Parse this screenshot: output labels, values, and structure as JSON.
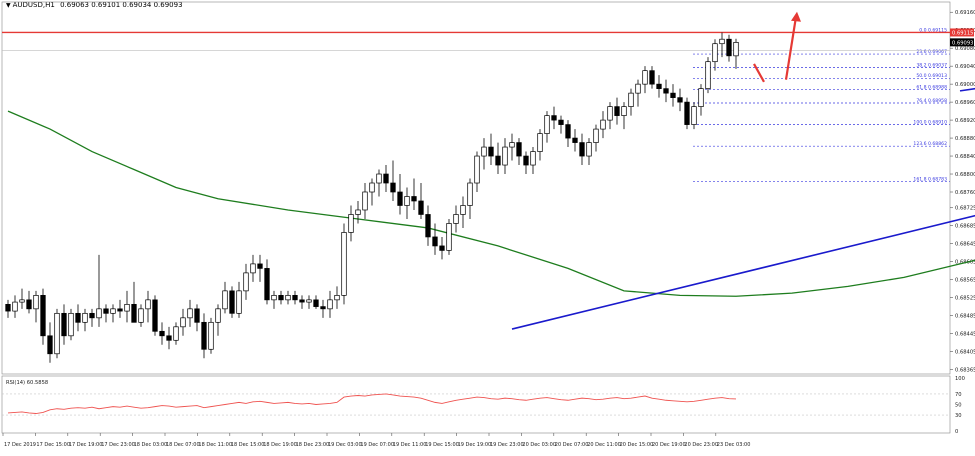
{
  "header": {
    "symbol_label": "AUDUSD,H1",
    "ohlc_label": "0.69063 0.69101 0.69034 0.69093"
  },
  "colors": {
    "up_candle": "#ffffff",
    "down_candle": "#000000",
    "candle_outline": "#000000",
    "ma_line": "#1e7d1e",
    "trendline": "#1a1acc",
    "fib_line": "#3a3ae0",
    "resistance_line": "#e53935",
    "arrow": "#e53935",
    "rsi_line": "#ef5350",
    "grid": "#c8c8c8",
    "price_tag_bg": "#e53935"
  },
  "chart_data": [
    {
      "type": "candlestick",
      "symbol": "AUDUSD",
      "timeframe": "H1",
      "ylim": [
        0.68355,
        0.69165
      ],
      "price_ticks": [
        "0.69160",
        "0.69120",
        "0.69080",
        "0.69040",
        "0.69000",
        "0.68960",
        "0.68920",
        "0.68880",
        "0.68840",
        "0.68800",
        "0.68760",
        "0.68725",
        "0.68685",
        "0.68645",
        "0.68605",
        "0.68565",
        "0.68525",
        "0.68485",
        "0.68445",
        "0.68405",
        "0.68365"
      ],
      "time_ticks": [
        "17 Dec 2019",
        "17 Dec 15:00",
        "17 Dec 19:00",
        "17 Dec 23:00",
        "18 Dec 03:00",
        "18 Dec 07:00",
        "18 Dec 11:00",
        "18 Dec 15:00",
        "18 Dec 19:00",
        "18 Dec 23:00",
        "19 Dec 03:00",
        "19 Dec 07:00",
        "19 Dec 11:00",
        "19 Dec 15:00",
        "19 Dec 19:00",
        "19 Dec 23:00",
        "20 Dec 03:00",
        "20 Dec 07:00",
        "20 Dec 11:00",
        "20 Dec 15:00",
        "20 Dec 19:00",
        "20 Dec 23:00",
        "23 Dec 03:00"
      ],
      "current_price": "0.69093",
      "resistance_price": "0.69115",
      "resistance_tag": "0.69115",
      "fibonacci": [
        {
          "label": "0.0",
          "price": 0.69115,
          "value_text": "0.69115"
        },
        {
          "label": "23.6",
          "price": 0.69067,
          "value_text": "0.69067"
        },
        {
          "label": "38.2",
          "price": 0.69037,
          "value_text": "0.69037"
        },
        {
          "label": "50.0",
          "price": 0.69013,
          "value_text": "0.69013"
        },
        {
          "label": "61.8",
          "price": 0.68988,
          "value_text": "0.68988"
        },
        {
          "label": "76.4",
          "price": 0.68958,
          "value_text": "0.68958"
        },
        {
          "label": "100.0",
          "price": 0.6891,
          "value_text": "0.68910"
        },
        {
          "label": "123.6",
          "price": 0.68862,
          "value_text": "0.68862"
        },
        {
          "label": "161.8",
          "price": 0.68783,
          "value_text": "0.68783"
        }
      ],
      "candles": [
        [
          0.6851,
          0.6852,
          0.6848,
          0.68495
        ],
        [
          0.68495,
          0.6853,
          0.6848,
          0.68515
        ],
        [
          0.68515,
          0.68545,
          0.685,
          0.6852
        ],
        [
          0.6852,
          0.6854,
          0.6849,
          0.685
        ],
        [
          0.685,
          0.6854,
          0.6847,
          0.6853
        ],
        [
          0.6853,
          0.68545,
          0.6842,
          0.6844
        ],
        [
          0.6844,
          0.6847,
          0.6838,
          0.684
        ],
        [
          0.684,
          0.685,
          0.6839,
          0.6849
        ],
        [
          0.6849,
          0.6851,
          0.6842,
          0.6844
        ],
        [
          0.6844,
          0.685,
          0.6843,
          0.6849
        ],
        [
          0.6849,
          0.6851,
          0.6845,
          0.6847
        ],
        [
          0.6847,
          0.685,
          0.6845,
          0.6849
        ],
        [
          0.6849,
          0.685,
          0.6846,
          0.6848
        ],
        [
          0.6848,
          0.6862,
          0.6846,
          0.685
        ],
        [
          0.685,
          0.6851,
          0.6847,
          0.6849
        ],
        [
          0.6849,
          0.6851,
          0.6847,
          0.685
        ],
        [
          0.685,
          0.6852,
          0.6848,
          0.68495
        ],
        [
          0.68495,
          0.6854,
          0.6847,
          0.6851
        ],
        [
          0.6851,
          0.6856,
          0.6847,
          0.6847
        ],
        [
          0.6847,
          0.6851,
          0.6846,
          0.685
        ],
        [
          0.685,
          0.6854,
          0.6847,
          0.6852
        ],
        [
          0.6852,
          0.6853,
          0.6844,
          0.6845
        ],
        [
          0.6845,
          0.6847,
          0.6842,
          0.6844
        ],
        [
          0.6844,
          0.6846,
          0.6841,
          0.6843
        ],
        [
          0.6843,
          0.6847,
          0.6842,
          0.6846
        ],
        [
          0.6846,
          0.685,
          0.6844,
          0.6848
        ],
        [
          0.6848,
          0.6852,
          0.6846,
          0.685
        ],
        [
          0.685,
          0.6851,
          0.6845,
          0.6847
        ],
        [
          0.6847,
          0.6849,
          0.6839,
          0.6841
        ],
        [
          0.6841,
          0.6848,
          0.684,
          0.6847
        ],
        [
          0.6847,
          0.6851,
          0.6844,
          0.685
        ],
        [
          0.685,
          0.6856,
          0.6849,
          0.6854
        ],
        [
          0.6854,
          0.6855,
          0.6848,
          0.6849
        ],
        [
          0.6849,
          0.6856,
          0.6848,
          0.6854
        ],
        [
          0.6854,
          0.686,
          0.6852,
          0.6858
        ],
        [
          0.6858,
          0.6862,
          0.6856,
          0.686
        ],
        [
          0.686,
          0.6862,
          0.6856,
          0.6859
        ],
        [
          0.6859,
          0.6861,
          0.6851,
          0.6852
        ],
        [
          0.6852,
          0.6854,
          0.685,
          0.6853
        ],
        [
          0.6853,
          0.6854,
          0.6851,
          0.6852
        ],
        [
          0.6852,
          0.6854,
          0.6851,
          0.6853
        ],
        [
          0.6853,
          0.6854,
          0.6851,
          0.6852
        ],
        [
          0.6852,
          0.6853,
          0.685,
          0.68515
        ],
        [
          0.68515,
          0.6853,
          0.685,
          0.6852
        ],
        [
          0.6852,
          0.6853,
          0.685,
          0.68505
        ],
        [
          0.68505,
          0.6852,
          0.6848,
          0.685
        ],
        [
          0.685,
          0.6854,
          0.6848,
          0.6852
        ],
        [
          0.6852,
          0.6855,
          0.685,
          0.6853
        ],
        [
          0.6853,
          0.6869,
          0.6851,
          0.6867
        ],
        [
          0.6867,
          0.6873,
          0.6865,
          0.6871
        ],
        [
          0.6871,
          0.6874,
          0.6869,
          0.6872
        ],
        [
          0.6872,
          0.6878,
          0.687,
          0.6876
        ],
        [
          0.6876,
          0.6879,
          0.6873,
          0.6878
        ],
        [
          0.6878,
          0.6881,
          0.6875,
          0.688
        ],
        [
          0.688,
          0.6882,
          0.6876,
          0.6878
        ],
        [
          0.6878,
          0.6883,
          0.6874,
          0.6876
        ],
        [
          0.6876,
          0.688,
          0.6871,
          0.6873
        ],
        [
          0.6873,
          0.6877,
          0.687,
          0.6875
        ],
        [
          0.6875,
          0.6879,
          0.6872,
          0.6874
        ],
        [
          0.6874,
          0.6878,
          0.687,
          0.6871
        ],
        [
          0.6871,
          0.6873,
          0.6864,
          0.6866
        ],
        [
          0.6866,
          0.6869,
          0.6862,
          0.6864
        ],
        [
          0.6864,
          0.6866,
          0.6861,
          0.6863
        ],
        [
          0.6863,
          0.687,
          0.6862,
          0.6869
        ],
        [
          0.6869,
          0.6873,
          0.6867,
          0.6871
        ],
        [
          0.6871,
          0.6875,
          0.6868,
          0.6873
        ],
        [
          0.6873,
          0.6879,
          0.687,
          0.6878
        ],
        [
          0.6878,
          0.6885,
          0.6876,
          0.6884
        ],
        [
          0.6884,
          0.6888,
          0.6881,
          0.6886
        ],
        [
          0.6886,
          0.6889,
          0.6882,
          0.6884
        ],
        [
          0.6884,
          0.6887,
          0.688,
          0.6882
        ],
        [
          0.6882,
          0.6888,
          0.688,
          0.6886
        ],
        [
          0.6886,
          0.6889,
          0.6883,
          0.6887
        ],
        [
          0.6887,
          0.6888,
          0.6882,
          0.6884
        ],
        [
          0.6884,
          0.6885,
          0.688,
          0.6882
        ],
        [
          0.6882,
          0.6886,
          0.688,
          0.6885
        ],
        [
          0.6885,
          0.689,
          0.6883,
          0.6889
        ],
        [
          0.6889,
          0.6894,
          0.6887,
          0.6893
        ],
        [
          0.6893,
          0.6895,
          0.689,
          0.6892
        ],
        [
          0.6892,
          0.6893,
          0.6889,
          0.6891
        ],
        [
          0.6891,
          0.6892,
          0.6886,
          0.6888
        ],
        [
          0.6888,
          0.689,
          0.6885,
          0.6887
        ],
        [
          0.6887,
          0.6889,
          0.6882,
          0.6884
        ],
        [
          0.6884,
          0.6888,
          0.6882,
          0.6887
        ],
        [
          0.6887,
          0.6891,
          0.6885,
          0.689
        ],
        [
          0.689,
          0.6894,
          0.6888,
          0.6892
        ],
        [
          0.6892,
          0.6896,
          0.689,
          0.6895
        ],
        [
          0.6895,
          0.6897,
          0.6891,
          0.6893
        ],
        [
          0.6893,
          0.6896,
          0.689,
          0.6895
        ],
        [
          0.6895,
          0.6899,
          0.6893,
          0.6898
        ],
        [
          0.6898,
          0.6901,
          0.6895,
          0.69
        ],
        [
          0.69,
          0.6904,
          0.6898,
          0.6903
        ],
        [
          0.6903,
          0.6904,
          0.6899,
          0.69
        ],
        [
          0.69,
          0.6902,
          0.6897,
          0.6899
        ],
        [
          0.6899,
          0.6901,
          0.6896,
          0.6898
        ],
        [
          0.6898,
          0.69,
          0.6895,
          0.6897
        ],
        [
          0.6897,
          0.6899,
          0.6894,
          0.6896
        ],
        [
          0.6896,
          0.6897,
          0.689,
          0.6891
        ],
        [
          0.6891,
          0.6896,
          0.689,
          0.6895
        ],
        [
          0.6895,
          0.69,
          0.6893,
          0.6899
        ],
        [
          0.6899,
          0.6906,
          0.6898,
          0.6905
        ],
        [
          0.6905,
          0.691,
          0.6903,
          0.6909
        ],
        [
          0.6909,
          0.69115,
          0.6906,
          0.691
        ],
        [
          0.691,
          0.6911,
          0.6905,
          0.69063
        ],
        [
          0.69063,
          0.69101,
          0.69034,
          0.69093
        ]
      ],
      "moving_average": [
        [
          0,
          0.6894
        ],
        [
          6,
          0.689
        ],
        [
          12,
          0.6885
        ],
        [
          18,
          0.6881
        ],
        [
          24,
          0.6877
        ],
        [
          30,
          0.68745
        ],
        [
          40,
          0.6872
        ],
        [
          50,
          0.687
        ],
        [
          60,
          0.6868
        ],
        [
          70,
          0.6864
        ],
        [
          80,
          0.6859
        ],
        [
          88,
          0.6854
        ],
        [
          96,
          0.6853
        ],
        [
          104,
          0.68528
        ],
        [
          112,
          0.68535
        ],
        [
          120,
          0.6855
        ],
        [
          128,
          0.6857
        ],
        [
          136,
          0.686
        ],
        [
          144,
          0.6863
        ],
        [
          152,
          0.68665
        ],
        [
          160,
          0.687
        ],
        [
          168,
          0.6874
        ],
        [
          176,
          0.6878
        ],
        [
          184,
          0.68815
        ],
        [
          192,
          0.68855
        ],
        [
          200,
          0.68885
        ],
        [
          206,
          0.68905
        ]
      ],
      "trendlines": [
        {
          "name": "lower-support",
          "points": [
            [
              72,
              0.68455
            ],
            [
              211,
              0.68985
            ]
          ]
        },
        {
          "name": "upper-channel",
          "points": [
            [
              136,
              0.68985
            ],
            [
              196,
              0.69125
            ]
          ]
        }
      ]
    },
    {
      "type": "line",
      "title": "RSI(14) 60.5858",
      "ylim": [
        0,
        100
      ],
      "levels": [
        30,
        70
      ],
      "y_ticks": [
        "100",
        "70",
        "50",
        "30",
        "0"
      ],
      "values": [
        34,
        35,
        36,
        34,
        33,
        35,
        40,
        42,
        41,
        43,
        44,
        43,
        45,
        42,
        44,
        46,
        45,
        47,
        45,
        43,
        44,
        46,
        48,
        47,
        45,
        46,
        47,
        48,
        44,
        46,
        48,
        50,
        52,
        54,
        52,
        55,
        56,
        54,
        52,
        53,
        54,
        52,
        51,
        52,
        50,
        51,
        52,
        54,
        64,
        66,
        67,
        66,
        68,
        69,
        70,
        68,
        66,
        65,
        64,
        62,
        58,
        54,
        52,
        55,
        58,
        60,
        62,
        64,
        63,
        61,
        60,
        62,
        61,
        59,
        58,
        60,
        62,
        63,
        61,
        59,
        58,
        60,
        62,
        61,
        59,
        60,
        62,
        63,
        61,
        62,
        64,
        66,
        62,
        60,
        58,
        57,
        56,
        55,
        56,
        58,
        60,
        62,
        63,
        61,
        60.59
      ]
    }
  ]
}
